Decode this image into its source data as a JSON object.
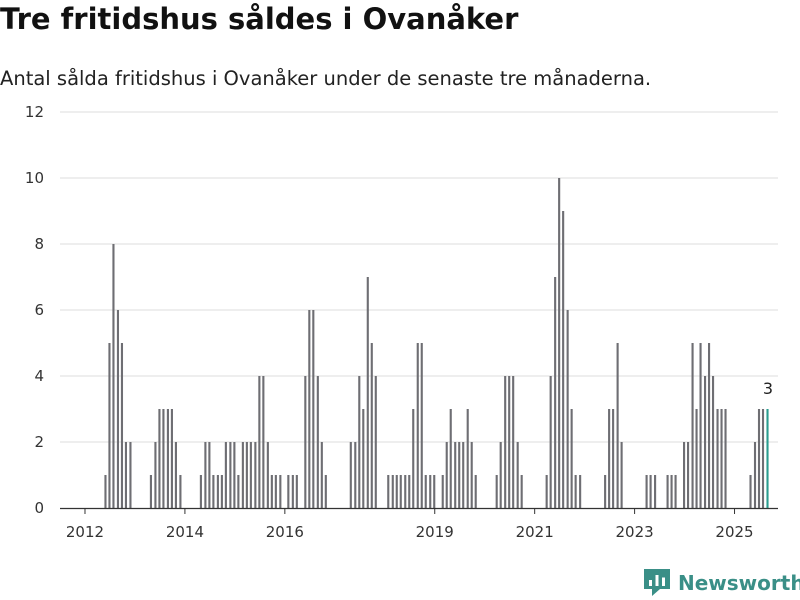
{
  "title": "Tre fritidshus såldes i Ovanåker",
  "subtitle": "Antal sålda fritidshus i Ovanåker under de senaste tre månaderna.",
  "brand": "Newsworthy",
  "colors": {
    "bar": "#6e6e73",
    "highlight": "#2a9d8f",
    "grid": "#dedede",
    "axis": "#333333",
    "brand": "#3a8f87"
  },
  "chart_data": {
    "type": "bar",
    "title": "Tre fritidshus såldes i Ovanåker",
    "subtitle": "Antal sålda fritidshus i Ovanåker under de senaste tre månaderna.",
    "xlabel": "",
    "ylabel": "",
    "ylim": [
      0,
      12
    ],
    "yticks": [
      0,
      2,
      4,
      6,
      8,
      10,
      12
    ],
    "xrange": [
      2011.5,
      2025.87
    ],
    "xticks": [
      {
        "label": "2012",
        "x": 2012
      },
      {
        "label": "2014",
        "x": 2014
      },
      {
        "label": "2016",
        "x": 2016
      },
      {
        "label": "2019",
        "x": 2019
      },
      {
        "label": "2021",
        "x": 2021
      },
      {
        "label": "2023",
        "x": 2023
      },
      {
        "label": "2025",
        "x": 2025
      }
    ],
    "bar_width_years": 0.0625,
    "highlight_label": "3",
    "series": [
      {
        "name": "Antal sålda fritidshus",
        "x": [
          2012.42,
          2012.5,
          2012.58,
          2012.67,
          2012.75,
          2012.83,
          2012.92,
          2013.33,
          2013.42,
          2013.5,
          2013.58,
          2013.67,
          2013.75,
          2013.83,
          2013.92,
          2014.33,
          2014.42,
          2014.5,
          2014.58,
          2014.67,
          2014.75,
          2014.83,
          2014.92,
          2015.0,
          2015.08,
          2015.17,
          2015.25,
          2015.33,
          2015.42,
          2015.5,
          2015.58,
          2015.67,
          2015.75,
          2015.83,
          2015.92,
          2016.08,
          2016.17,
          2016.25,
          2016.42,
          2016.5,
          2016.58,
          2016.67,
          2016.75,
          2016.83,
          2017.33,
          2017.42,
          2017.5,
          2017.58,
          2017.67,
          2017.75,
          2017.83,
          2018.08,
          2018.17,
          2018.25,
          2018.33,
          2018.42,
          2018.5,
          2018.58,
          2018.67,
          2018.75,
          2018.83,
          2018.92,
          2019.0,
          2019.17,
          2019.25,
          2019.33,
          2019.42,
          2019.5,
          2019.58,
          2019.67,
          2019.75,
          2019.83,
          2020.25,
          2020.33,
          2020.42,
          2020.5,
          2020.58,
          2020.67,
          2020.75,
          2021.25,
          2021.33,
          2021.42,
          2021.5,
          2021.58,
          2021.67,
          2021.75,
          2021.83,
          2021.92,
          2022.42,
          2022.5,
          2022.58,
          2022.67,
          2022.75,
          2023.25,
          2023.33,
          2023.42,
          2023.67,
          2023.75,
          2023.83,
          2024.0,
          2024.08,
          2024.17,
          2024.25,
          2024.33,
          2024.42,
          2024.5,
          2024.58,
          2024.67,
          2024.75,
          2024.83,
          2025.33,
          2025.42,
          2025.5,
          2025.58,
          2025.67
        ],
        "values": [
          1,
          5,
          8,
          6,
          5,
          2,
          2,
          1,
          2,
          3,
          3,
          3,
          3,
          2,
          1,
          1,
          2,
          2,
          1,
          1,
          1,
          2,
          2,
          2,
          1,
          2,
          2,
          2,
          2,
          4,
          4,
          2,
          1,
          1,
          1,
          1,
          1,
          1,
          4,
          6,
          6,
          4,
          2,
          1,
          2,
          2,
          4,
          3,
          7,
          5,
          4,
          1,
          1,
          1,
          1,
          1,
          1,
          3,
          5,
          5,
          1,
          1,
          1,
          1,
          2,
          3,
          2,
          2,
          2,
          3,
          2,
          1,
          1,
          2,
          4,
          4,
          4,
          2,
          1,
          1,
          4,
          7,
          10,
          9,
          6,
          3,
          1,
          1,
          1,
          3,
          3,
          5,
          2,
          1,
          1,
          1,
          1,
          1,
          1,
          2,
          2,
          5,
          3,
          5,
          4,
          5,
          4,
          3,
          3,
          3,
          1,
          2,
          3,
          3,
          3
        ]
      }
    ]
  }
}
